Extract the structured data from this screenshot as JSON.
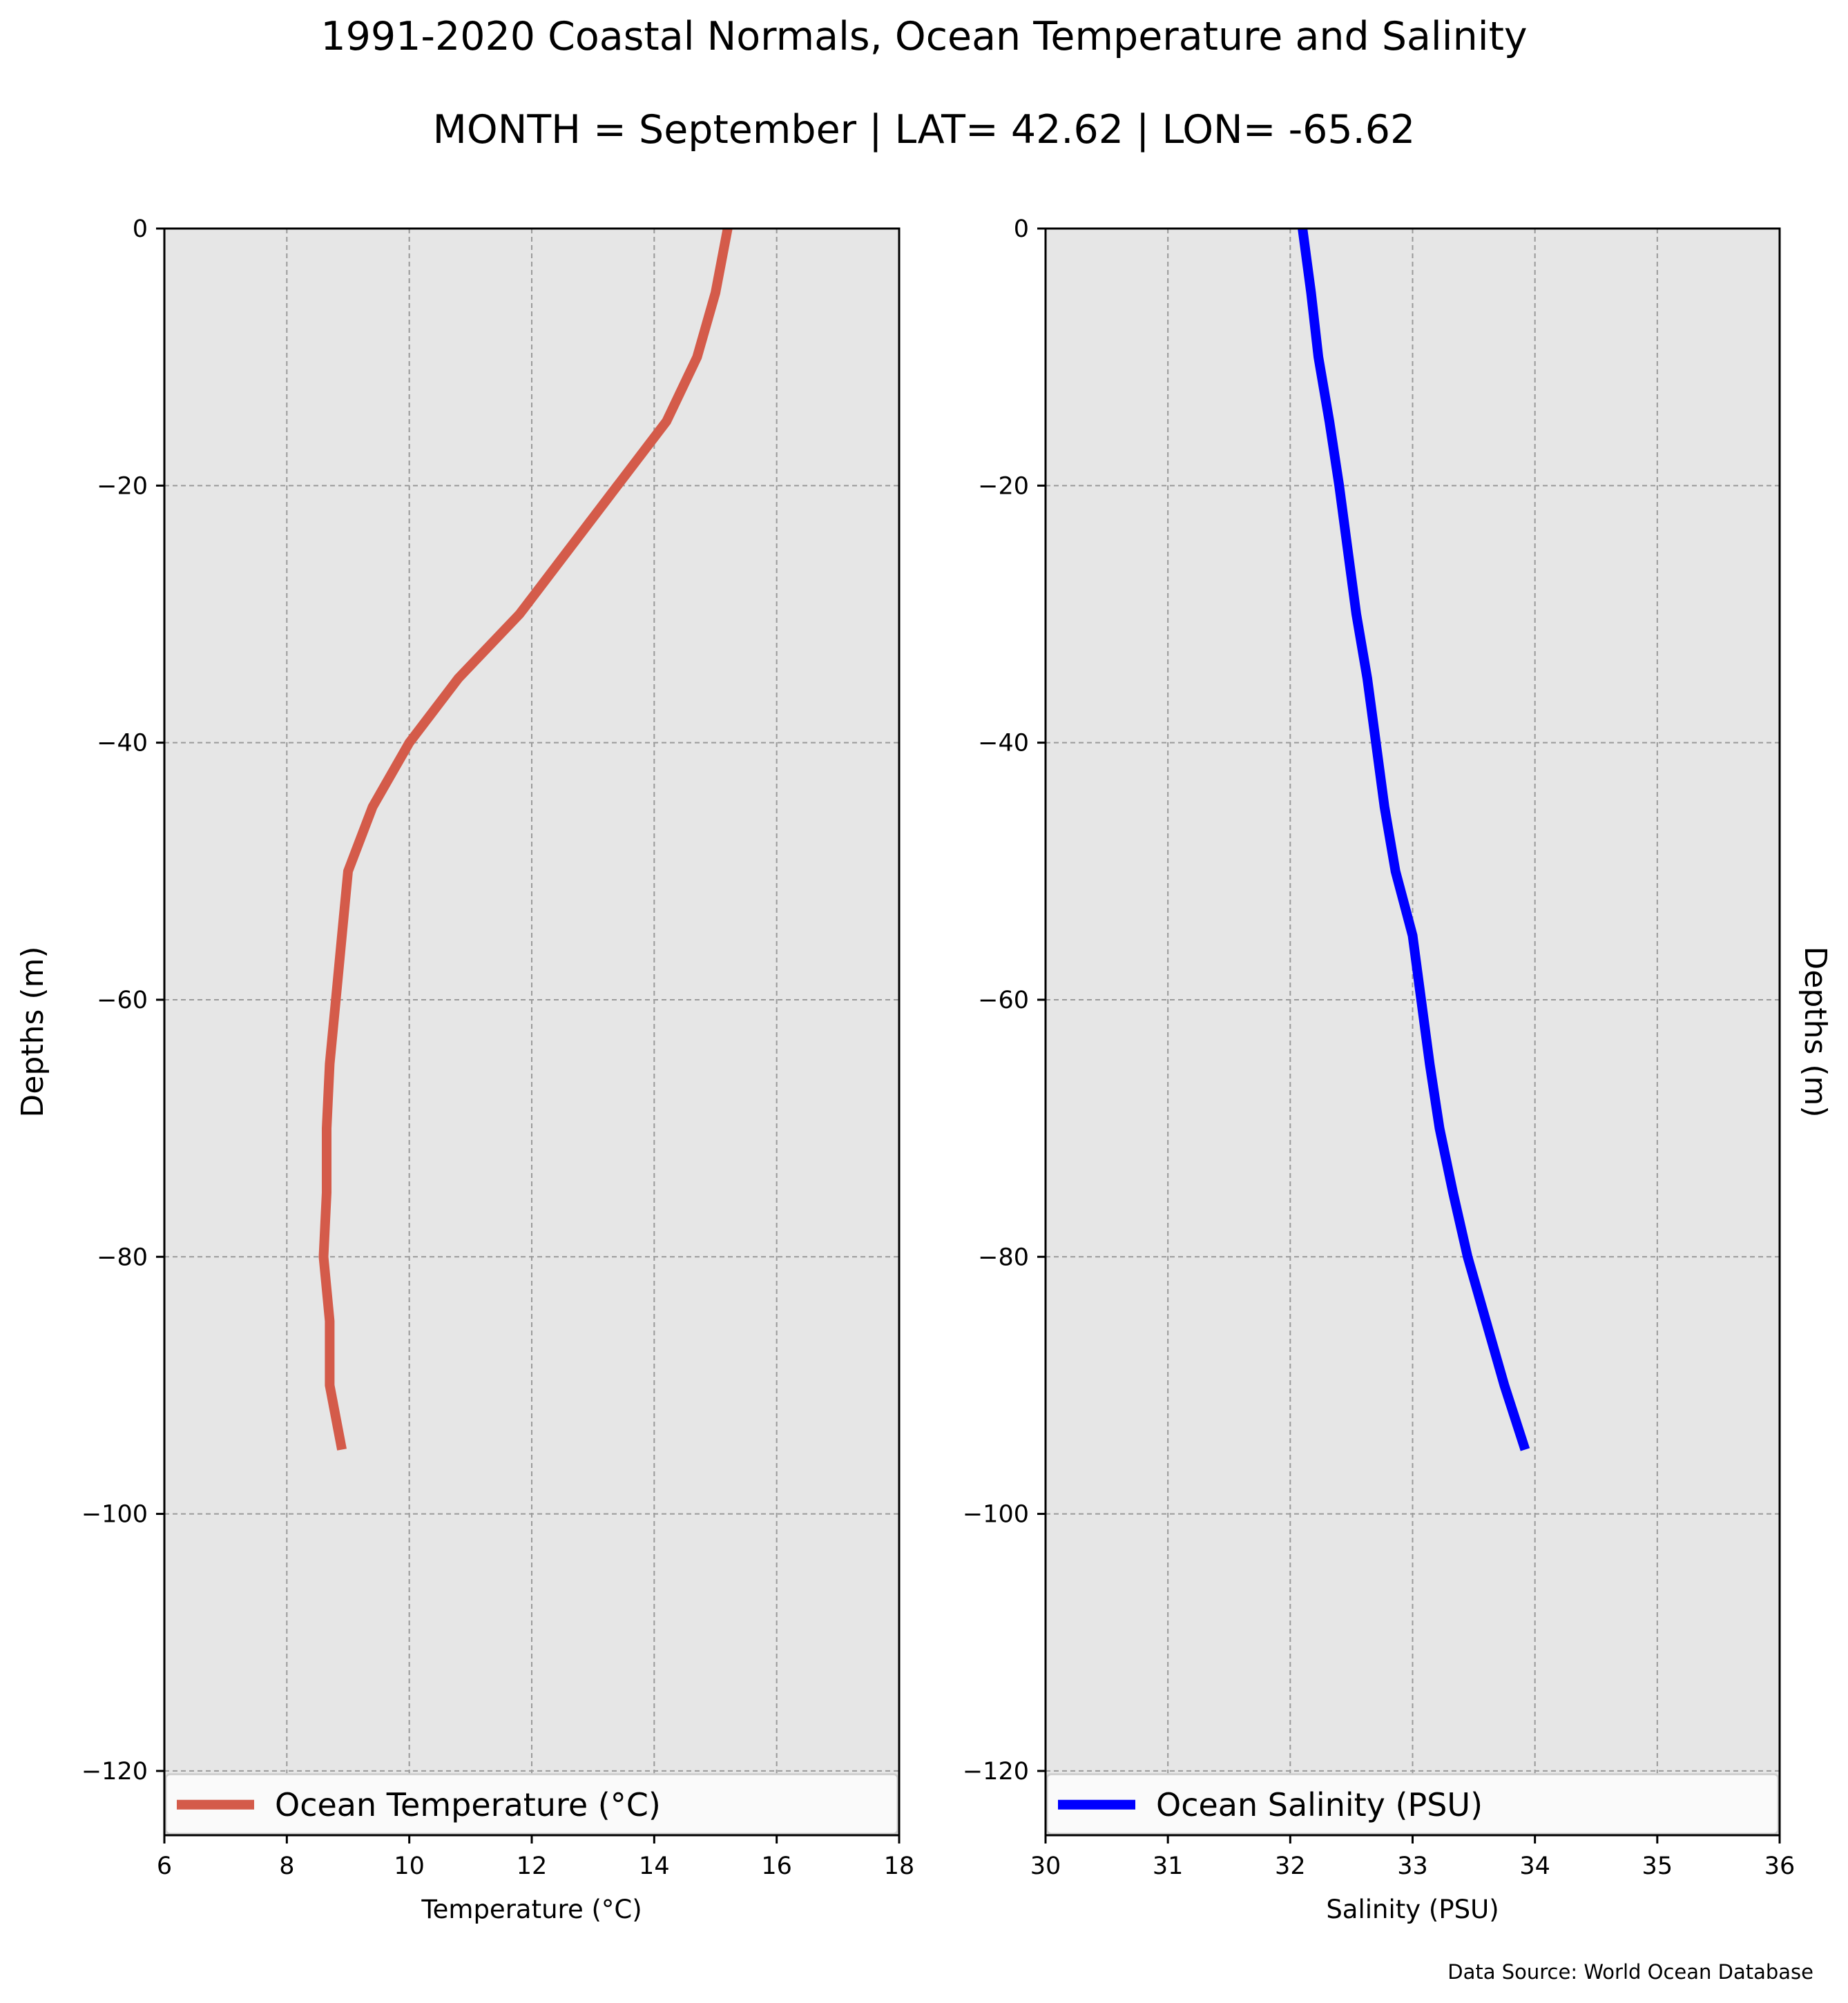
{
  "title": "1991-2020 Coastal Normals, Ocean Temperature and Salinity",
  "subtitle": "MONTH = September | LAT= 42.62 | LON= -65.62",
  "source": "Data Source: World Ocean Database",
  "chart_data": [
    {
      "type": "line",
      "xlabel": "Temperature (°C)",
      "ylabel": "Depths (m)",
      "xlim": [
        6,
        18
      ],
      "ylim": [
        -125,
        0
      ],
      "xticks": [
        6,
        8,
        10,
        12,
        14,
        16,
        18
      ],
      "yticks": [
        0,
        -20,
        -40,
        -60,
        -80,
        -100,
        -120
      ],
      "grid": true,
      "legend_placement": "bottom",
      "series": [
        {
          "name": "Ocean Temperature (°C)",
          "color": "#d45b4a",
          "x": [
            15.2,
            15.0,
            14.7,
            14.2,
            13.4,
            12.6,
            11.8,
            10.8,
            10.0,
            9.4,
            9.0,
            8.9,
            8.8,
            8.7,
            8.65,
            8.65,
            8.6,
            8.7,
            8.7,
            8.9
          ],
          "y": [
            0,
            -5,
            -10,
            -15,
            -20,
            -25,
            -30,
            -35,
            -40,
            -45,
            -50,
            -55,
            -60,
            -65,
            -70,
            -75,
            -80,
            -85,
            -90,
            -95
          ]
        }
      ]
    },
    {
      "type": "line",
      "xlabel": "Salinity (PSU)",
      "ylabel": "Depths (m)",
      "xlim": [
        30,
        36
      ],
      "ylim": [
        -125,
        0
      ],
      "xticks": [
        30,
        31,
        32,
        33,
        34,
        35,
        36
      ],
      "yticks": [
        0,
        -20,
        -40,
        -60,
        -80,
        -100,
        -120
      ],
      "grid": true,
      "legend_placement": "bottom",
      "series": [
        {
          "name": "Ocean Salinity (PSU)",
          "color": "#0000ff",
          "x": [
            32.1,
            32.17,
            32.23,
            32.32,
            32.4,
            32.47,
            32.54,
            32.63,
            32.7,
            32.77,
            32.86,
            33.0,
            33.07,
            33.14,
            33.22,
            33.33,
            33.45,
            33.6,
            33.75,
            33.92
          ],
          "y": [
            0,
            -5,
            -10,
            -15,
            -20,
            -25,
            -30,
            -35,
            -40,
            -45,
            -50,
            -55,
            -60,
            -65,
            -70,
            -75,
            -80,
            -85,
            -90,
            -95
          ]
        }
      ]
    }
  ]
}
